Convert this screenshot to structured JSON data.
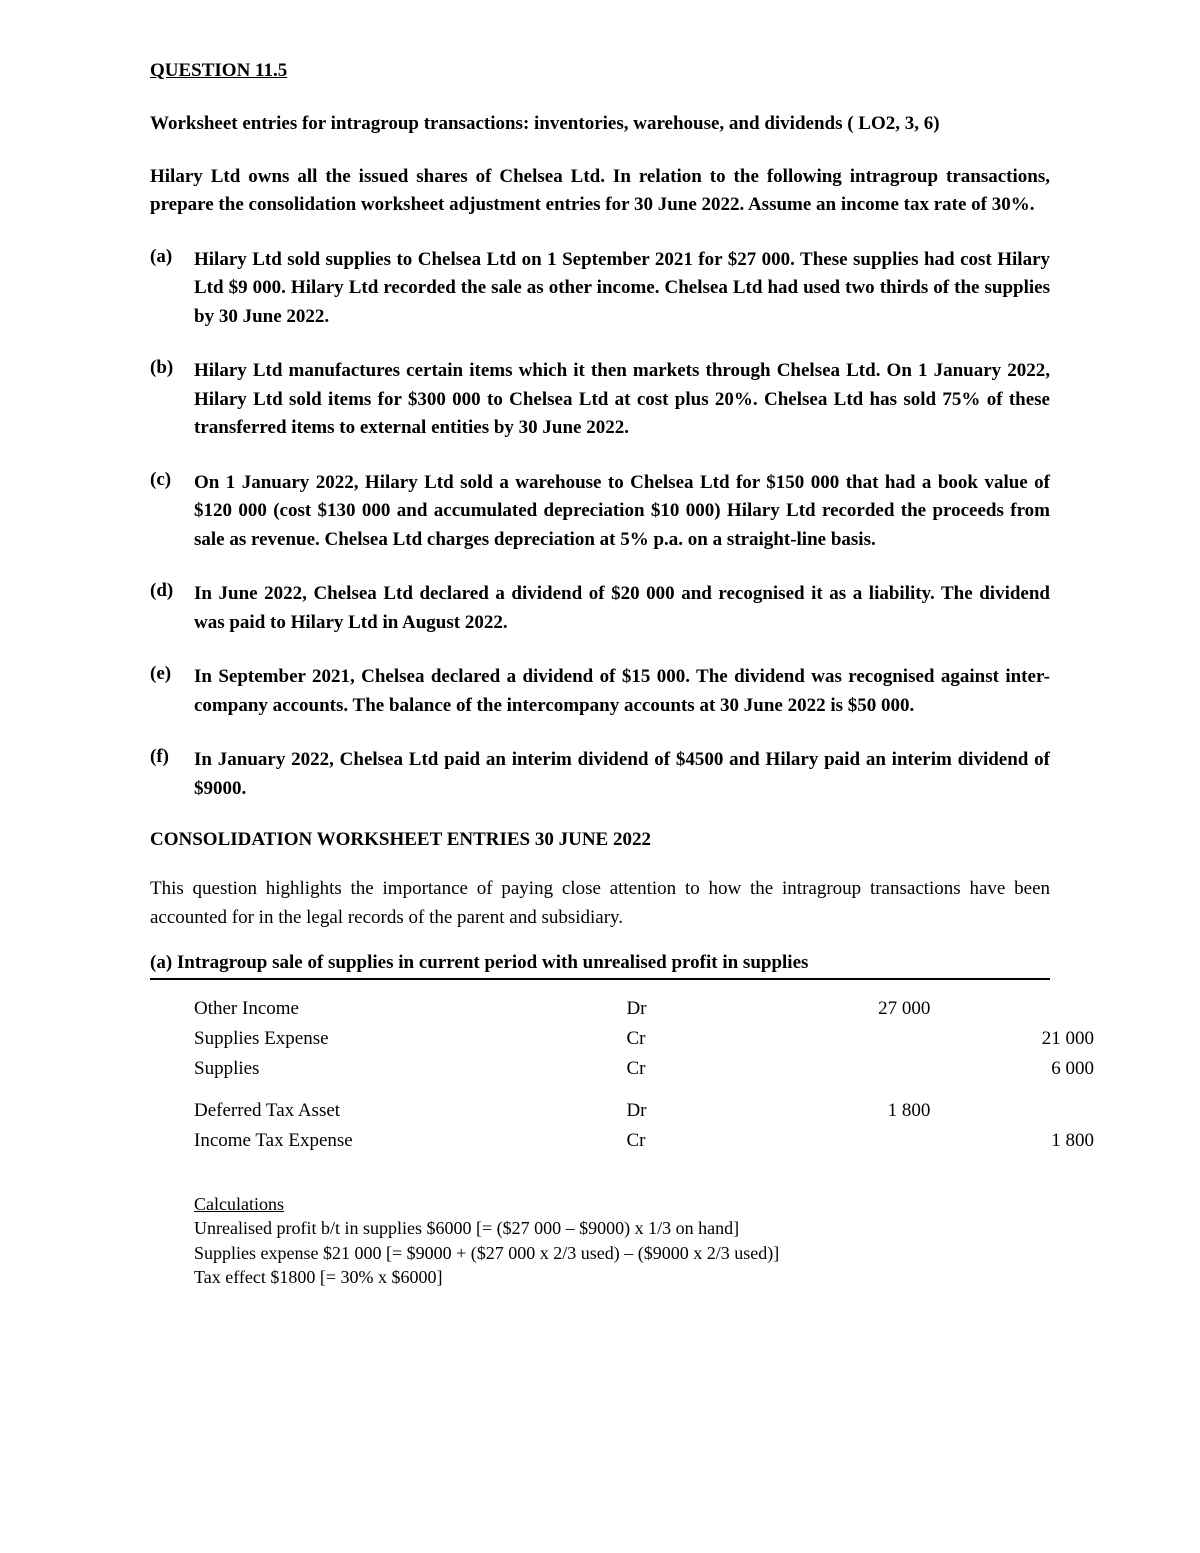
{
  "title": "QUESTION 11.5",
  "subtitle": "Worksheet entries for intragroup transactions: inventories, warehouse, and dividends ( LO2, 3, 6)",
  "intro": "Hilary Ltd owns all the issued shares of Chelsea Ltd. In relation to the following intragroup transactions, prepare the consolidation worksheet adjustment entries for 30 June 2022. Assume an income tax rate of 30%.",
  "items": [
    {
      "marker": "(a)",
      "text": "Hilary Ltd sold supplies to Chelsea Ltd on 1 September 2021 for $27 000. These supplies had cost Hilary Ltd $9 000. Hilary Ltd recorded the sale as other income. Chelsea Ltd had used two thirds of the supplies by 30 June 2022."
    },
    {
      "marker": "(b)",
      "text": "Hilary Ltd manufactures certain items which it then markets through Chelsea Ltd. On 1 January 2022, Hilary Ltd sold items for $300 000 to Chelsea Ltd at cost plus 20%. Chelsea Ltd has sold 75% of these transferred items to external entities by 30 June 2022."
    },
    {
      "marker": "(c)",
      "text": "On 1 January 2022, Hilary Ltd sold a warehouse to Chelsea Ltd for $150 000 that had a book value of $120 000 (cost $130 000 and accumulated depreciation $10 000) Hilary Ltd recorded the proceeds from sale as revenue. Chelsea Ltd charges depreciation at 5% p.a. on a straight-line basis."
    },
    {
      "marker": "(d)",
      "text": "In June 2022, Chelsea Ltd declared a dividend of $20 000 and recognised it as a liability. The dividend was paid to Hilary Ltd in August 2022."
    },
    {
      "marker": "(e)",
      "text": "In September 2021, Chelsea declared a dividend of $15 000. The dividend was recognised against inter-company accounts. The balance of the intercompany accounts at 30 June 2022 is $50 000."
    },
    {
      "marker": "(f)",
      "text": "In January 2022, Chelsea Ltd paid an interim dividend of $4500 and Hilary paid an interim dividend of $9000."
    }
  ],
  "sectionTitle": "CONSOLIDATION WORKSHEET ENTRIES 30 JUNE 2022",
  "note": "This question highlights the importance of paying close attention to how the intragroup transactions have been accounted for in the legal records of the parent and subsidiary.",
  "partA": {
    "heading": "(a) Intragroup sale of supplies in current period with unrealised profit in supplies",
    "rows": [
      {
        "account": "Other Income",
        "drcr": "Dr",
        "debit": "27 000",
        "credit": "",
        "indent": false
      },
      {
        "account": "Supplies Expense",
        "drcr": "Cr",
        "debit": "",
        "credit": "21 000",
        "indent": true
      },
      {
        "account": "Supplies",
        "drcr": "Cr",
        "debit": "",
        "credit": "6 000",
        "indent": true
      },
      {
        "spacer": true
      },
      {
        "account": "Deferred Tax Asset",
        "drcr": "Dr",
        "debit": "1 800",
        "credit": "",
        "indent": false
      },
      {
        "account": "Income Tax Expense",
        "drcr": "Cr",
        "debit": "",
        "credit": "1 800",
        "indent": true
      }
    ]
  },
  "calc": {
    "heading": "Calculations",
    "lines": [
      "Unrealised profit b/t in supplies $6000 [= ($27 000 – $9000) x 1/3 on hand]",
      "Supplies expense $21 000 [= $9000 + ($27 000 x 2/3 used) – ($9000 x 2/3 used)]",
      "Tax effect $1800 [= 30% x $6000]"
    ]
  }
}
